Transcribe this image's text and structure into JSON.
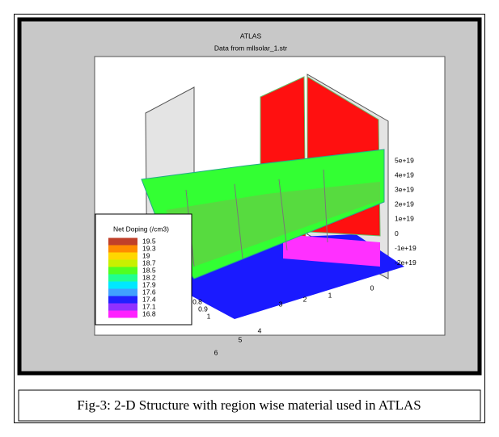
{
  "figure": {
    "title": "ATLAS",
    "subtitle": "Data from mllsolar_1.str",
    "z_axis_labels": [
      "5e+19",
      "4e+19",
      "3e+19",
      "2e+19",
      "1e+19",
      "0",
      "-1e+19",
      "-2e+19"
    ],
    "x_axis_labels": [
      "6",
      "5",
      "4",
      "3",
      "2",
      "1",
      "0"
    ],
    "y_axis_labels": [
      "0.8",
      "0.9",
      "1"
    ],
    "legend": {
      "title": "Net Doping (/cm3)",
      "entries": [
        "19.5",
        "19.3",
        "19",
        "18.7",
        "18.5",
        "18.2",
        "17.9",
        "17.6",
        "17.4",
        "17.1",
        "16.8"
      ]
    }
  },
  "caption": "Fig-3: 2-D Structure with region wise material used in ATLAS"
}
